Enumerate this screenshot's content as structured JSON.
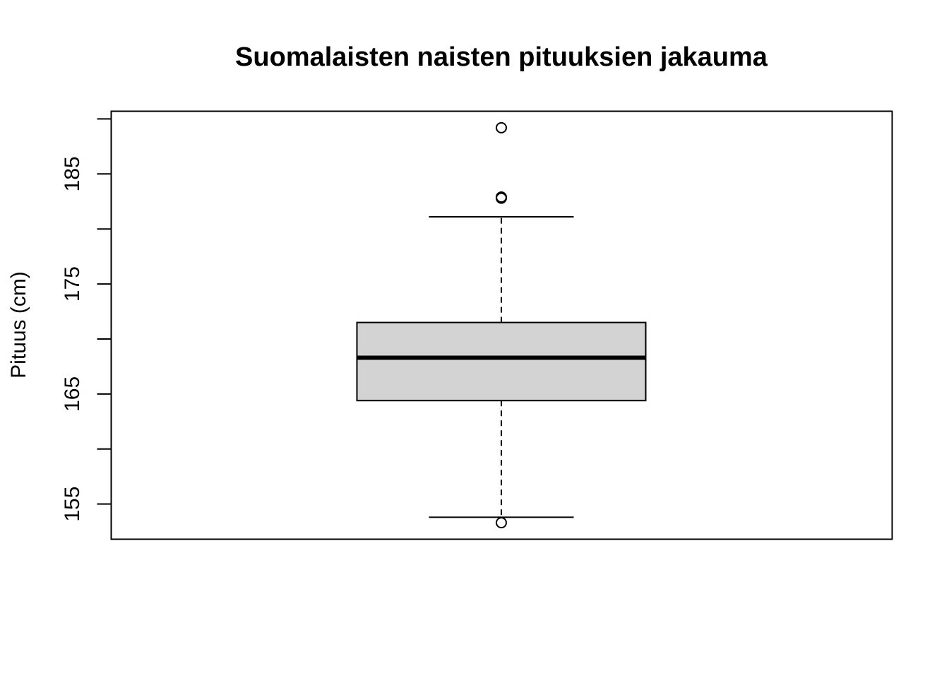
{
  "chart_data": {
    "type": "box",
    "title": "Suomalaisten naisten pituuksien jakauma",
    "xlabel": "",
    "ylabel": "Pituus (cm)",
    "ylim": [
      151.8,
      190.7
    ],
    "y_ticks": [
      155,
      160,
      165,
      170,
      175,
      180,
      185,
      190
    ],
    "y_tick_labels": [
      "155",
      "",
      "165",
      "",
      "175",
      "",
      "185",
      ""
    ],
    "grid": false,
    "legend": "none",
    "box": {
      "whisker_low": 153.8,
      "q1": 164.4,
      "median": 168.3,
      "q3": 171.5,
      "whisker_high": 181.1,
      "outliers": [
        189.2,
        182.9,
        182.8,
        153.3
      ]
    },
    "colors": {
      "box_fill": "#d3d3d3",
      "stroke": "#000000",
      "background": "#ffffff"
    }
  }
}
